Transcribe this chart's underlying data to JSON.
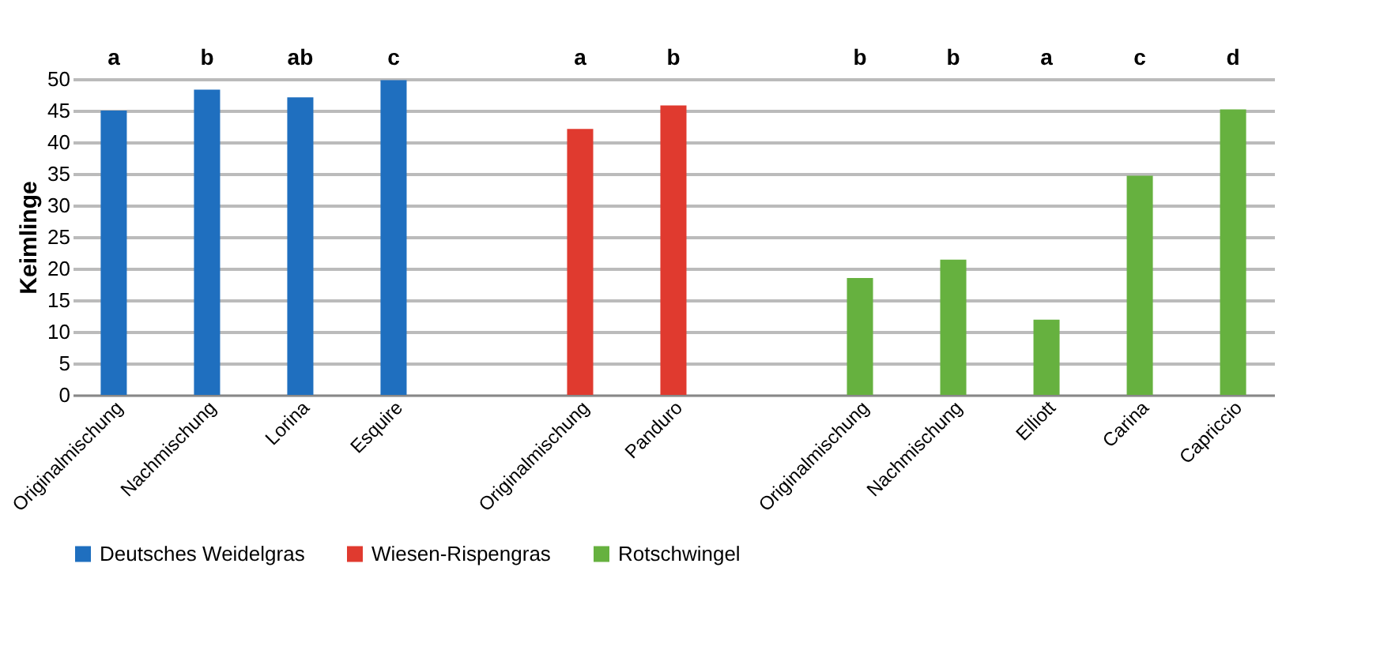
{
  "chart_data": {
    "type": "bar",
    "ylabel": "Keimlinge",
    "categories": [
      "Originalmischung",
      "Nachmischung",
      "Lorina",
      "Esquire",
      null,
      "Originalmischung",
      "Panduro",
      null,
      "Originalmischung",
      "Nachmischung",
      "Elliott",
      "Carina",
      "Capriccio"
    ],
    "series": [
      {
        "name": "Deutsches Weidelgras",
        "color": "#1f6fbf",
        "values": [
          45,
          48.3,
          47.1,
          49.8,
          null,
          null,
          null,
          null,
          null,
          null,
          null,
          null,
          null
        ]
      },
      {
        "name": "Wiesen-Rispengras",
        "color": "#e03a2f",
        "values": [
          null,
          null,
          null,
          null,
          null,
          42.1,
          45.8,
          null,
          null,
          null,
          null,
          null,
          null
        ]
      },
      {
        "name": "Rotschwingel",
        "color": "#66b13f",
        "values": [
          null,
          null,
          null,
          null,
          null,
          null,
          null,
          null,
          18.5,
          21.4,
          11.9,
          34.7,
          45.2
        ]
      }
    ],
    "annotations": [
      "a",
      "b",
      "ab",
      "c",
      "a",
      "b",
      "b",
      "b",
      "a",
      "c",
      "d"
    ],
    "ylim": [
      0,
      50
    ],
    "yticks": [
      0,
      5,
      10,
      15,
      20,
      25,
      30,
      35,
      40,
      45,
      50
    ],
    "grid": "y",
    "legend": "bottom"
  }
}
